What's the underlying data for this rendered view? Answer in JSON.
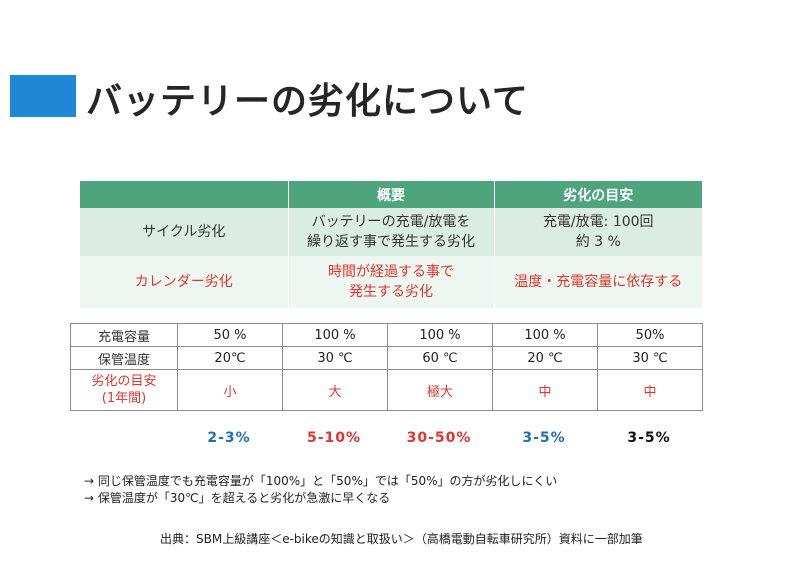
{
  "title": "バッテリーの劣化について",
  "top_table": {
    "headers": [
      "",
      "概要",
      "劣化の目安"
    ],
    "rows": [
      {
        "type": "サイクル劣化",
        "summary": "バッテリーの充電/放電を\n繰り返す事で発生する劣化",
        "measure": "充電/放電: 100回\n約 3 %"
      },
      {
        "type": "カレンダー劣化",
        "summary": "時間が経過する事で\n発生する劣化",
        "measure": "温度・充電容量に依存する"
      }
    ]
  },
  "bottom_table": {
    "rows": [
      {
        "label": "充電容量",
        "values": [
          "50 %",
          "100 %",
          "100 %",
          "100 %",
          "50%"
        ]
      },
      {
        "label": "保管温度",
        "values": [
          "20℃",
          "30 ℃",
          "60 ℃",
          "20 ℃",
          "30 ℃"
        ]
      },
      {
        "label": "劣化の目安\n(1年間)",
        "values": [
          "小",
          "大",
          "極大",
          "中",
          "中"
        ]
      }
    ]
  },
  "percentages": [
    {
      "text": "2-3%",
      "color": "#1f6fb5"
    },
    {
      "text": "5-10%",
      "color": "#e0352b"
    },
    {
      "text": "30-50%",
      "color": "#e0352b"
    },
    {
      "text": "3-5%",
      "color": "#1f6fb5"
    },
    {
      "text": "3-5%",
      "color": "#111111"
    }
  ],
  "notes": [
    "→ 同じ保管温度でも充電容量が「100%」と「50%」では「50%」の方が劣化しにくい",
    "→ 保管温度が「30℃」を超えると劣化が急激に早くなる"
  ],
  "source": "出典：SBM上級講座＜e-bikeの知識と取扱い＞（高橋電動自転車研究所）資料に一部加筆"
}
